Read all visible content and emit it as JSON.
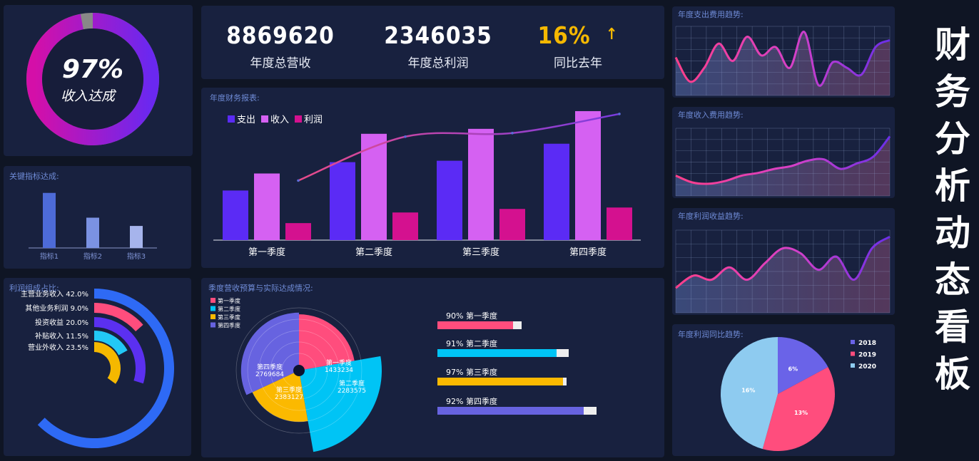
{
  "dashboard_title_chars": [
    "财",
    "务",
    "分",
    "析",
    "动",
    "态",
    "看",
    "板"
  ],
  "gauge": {
    "percent_label": "97%",
    "caption": "收入达成",
    "value": 97
  },
  "kpis": [
    {
      "value": "8869620",
      "label": "年度总营收"
    },
    {
      "value": "2346035",
      "label": "年度总利润"
    },
    {
      "value": "16%",
      "label": "同比去年",
      "arrow": "↑"
    }
  ],
  "key_indicators": {
    "title": "关键指标达成:",
    "chart_data": {
      "type": "bar",
      "categories": [
        "指标1",
        "指标2",
        "指标3"
      ],
      "values": [
        100,
        55,
        40
      ],
      "ylim": [
        0,
        110
      ]
    }
  },
  "profit_composition": {
    "title": "利润组成占比:",
    "chart_data": {
      "type": "radial-bar",
      "items": [
        {
          "label": "主营业务收入 42.0%",
          "value": 42.0,
          "color": "#2e6af5"
        },
        {
          "label": "其他业务利润 9.0%",
          "value": 9.0,
          "color": "#ff4d7d"
        },
        {
          "label": "投资收益 20.0%",
          "value": 20.0,
          "color": "#5b30f0"
        },
        {
          "label": "补贴收入 11.5%",
          "value": 11.5,
          "color": "#22c8f5"
        },
        {
          "label": "营业外收入 23.5%",
          "value": 23.5,
          "color": "#f5b800"
        }
      ]
    }
  },
  "annual_report": {
    "title": "年度财务报表:",
    "chart_data": {
      "type": "bar",
      "categories": [
        "第一季度",
        "第二季度",
        "第三季度",
        "第四季度"
      ],
      "series": [
        {
          "name": "支出",
          "values": [
            70,
            110,
            112,
            136
          ],
          "color": "#5b2bf5"
        },
        {
          "name": "收入",
          "values": [
            94,
            150,
            157,
            182
          ],
          "color": "#d561f2"
        },
        {
          "name": "利润",
          "values": [
            24,
            39,
            44,
            46
          ],
          "color": "#d4118f"
        }
      ],
      "line": {
        "values": [
          84,
          146,
          151,
          178
        ]
      },
      "ylim": [
        0,
        190
      ]
    }
  },
  "quarter_budget": {
    "title": "季度营收预算与实际达成情况:",
    "rose": {
      "type": "pie",
      "legend": [
        "第一季度",
        "第二季度",
        "第三季度",
        "第四季度"
      ],
      "items": [
        {
          "name": "第一季度",
          "value": "1433234",
          "radius": 0.68,
          "color": "#ff4d7d"
        },
        {
          "name": "第二季度",
          "value": "2283575",
          "radius": 1.0,
          "color": "#00c4f5"
        },
        {
          "name": "第三季度",
          "value": "2383127",
          "radius": 0.62,
          "color": "#fbb900"
        },
        {
          "name": "第四季度",
          "value": "2769684",
          "radius": 0.7,
          "color": "#6763e0"
        }
      ]
    },
    "bars": [
      {
        "label": "90% 第一季度",
        "value": 90,
        "color": "#ff4d7d"
      },
      {
        "label": "91% 第二季度",
        "value": 91,
        "color": "#00c4f5"
      },
      {
        "label": "97% 第三季度",
        "value": 97,
        "color": "#fbb900"
      },
      {
        "label": "92% 第四季度",
        "value": 92,
        "color": "#6763e0"
      }
    ]
  },
  "trend_expense": {
    "title": "年度支出费用趋势:",
    "chart_data": {
      "type": "area",
      "values": [
        55,
        20,
        40,
        75,
        50,
        85,
        58,
        70,
        40,
        92,
        15,
        48,
        40,
        30,
        70,
        80
      ],
      "ylim": [
        0,
        100
      ]
    }
  },
  "trend_income": {
    "title": "年度收入费用趋势:",
    "chart_data": {
      "type": "area",
      "values": [
        30,
        20,
        18,
        22,
        30,
        34,
        40,
        44,
        52,
        54,
        40,
        48,
        58,
        88
      ],
      "ylim": [
        0,
        100
      ]
    }
  },
  "trend_profit": {
    "title": "年度利润收益趋势:",
    "chart_data": {
      "type": "area",
      "values": [
        30,
        45,
        40,
        55,
        40,
        60,
        78,
        72,
        52,
        68,
        40,
        78,
        92
      ],
      "ylim": [
        0,
        100
      ]
    }
  },
  "yoy_pie": {
    "title": "年度利润同比趋势:",
    "chart_data": {
      "type": "pie",
      "legend": [
        "2018",
        "2019",
        "2020"
      ],
      "items": [
        {
          "name": "2018",
          "value": 6,
          "label": "6%",
          "color": "#6a63e8"
        },
        {
          "name": "2019",
          "value": 13,
          "label": "13%",
          "color": "#ff4d7d"
        },
        {
          "name": "2020",
          "value": 16,
          "label": "16%",
          "color": "#8ecbf0"
        }
      ]
    }
  }
}
